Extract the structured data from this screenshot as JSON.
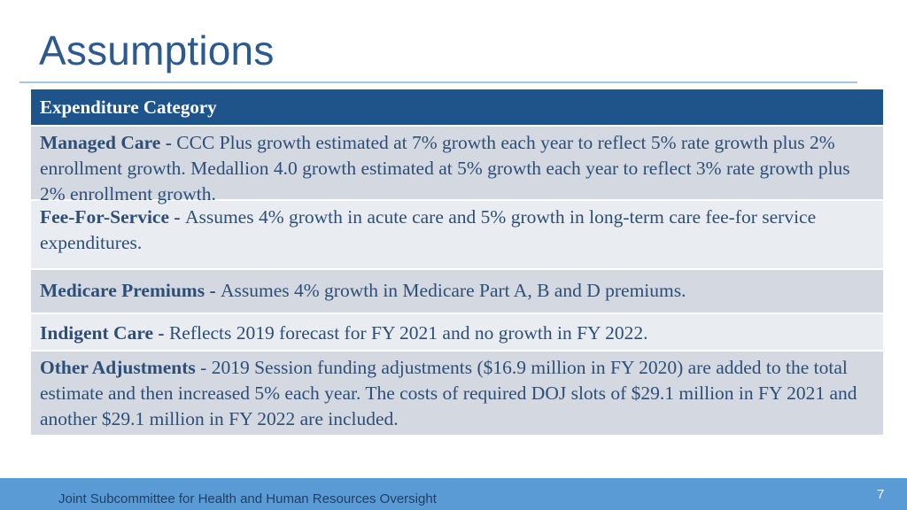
{
  "slide": {
    "title": "Assumptions",
    "table": {
      "header": "Expenditure Category",
      "rows": [
        {
          "label": "Managed Care - ",
          "text": " CCC Plus growth estimated at 7% growth each year to reflect 5% rate growth plus 2% enrollment growth.  Medallion 4.0 growth estimated at 5% growth each year to reflect 3% rate growth plus 2% enrollment growth."
        },
        {
          "label": "Fee-For-Service - ",
          "text": "Assumes 4% growth in acute care and 5% growth in long-term care fee-for service expenditures."
        },
        {
          "label": "Medicare Premiums - ",
          "text": "Assumes 4% growth in Medicare Part A, B and D premiums."
        },
        {
          "label": "Indigent Care - ",
          "text": "Reflects 2019 forecast for FY 2021 and no growth in FY 2022."
        },
        {
          "label": "Other Adjustments",
          "text": " -  2019 Session funding adjustments ($16.9 million in FY 2020) are added to the total estimate and then increased 5% each year.   The costs of required DOJ slots of $29.1 million in FY 2021 and another $29.1 million in FY 2022 are included."
        }
      ]
    },
    "footer": "Joint Subcommittee for Health and Human Resources Oversight",
    "page_number": "7"
  }
}
